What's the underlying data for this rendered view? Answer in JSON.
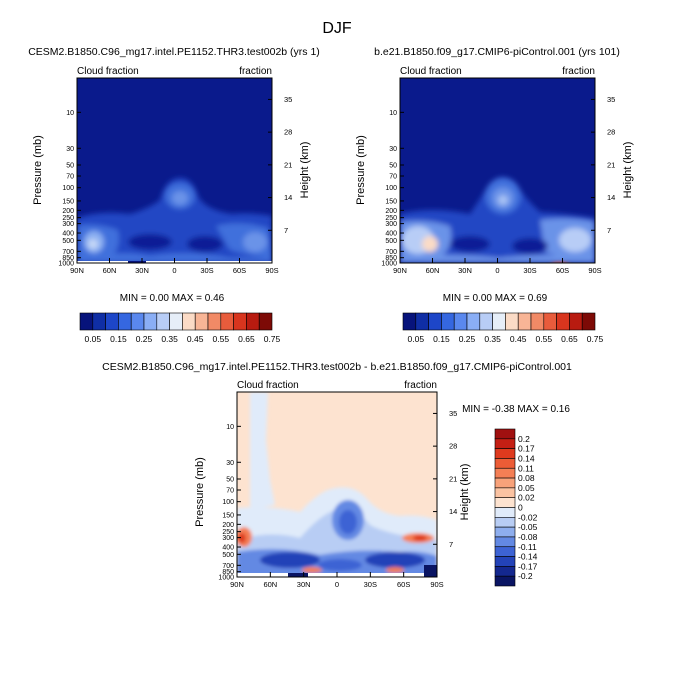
{
  "figure": {
    "title": "DJF"
  },
  "panels": {
    "left": {
      "title": "CESM2.B1850.C96_mg17.intel.PE1152.THR3.test002b (yrs 1)",
      "label_left": "Cloud fraction",
      "label_right": "fraction",
      "ylabel": "Pressure (mb)",
      "ylabel_right": "Height (km)",
      "stats": "MIN =  0.00  MAX =  0.46"
    },
    "right": {
      "title": "b.e21.B1850.f09_g17.CMIP6-piControl.001 (yrs 101)",
      "label_left": "Cloud fraction",
      "label_right": "fraction",
      "ylabel": "Pressure (mb)",
      "ylabel_right": "Height (km)",
      "stats": "MIN =  0.00  MAX =  0.69"
    },
    "diff": {
      "title": "CESM2.B1850.C96_mg17.intel.PE1152.THR3.test002b - b.e21.B1850.f09_g17.CMIP6-piControl.001",
      "label_left": "Cloud fraction",
      "label_right": "fraction",
      "ylabel": "Pressure (mb)",
      "ylabel_right": "Height (km)",
      "stats": "MIN = -0.38  MAX =  0.16"
    }
  },
  "chart_data": [
    {
      "type": "heatmap",
      "panel": "left",
      "title": "CESM2.B1850.C96_mg17.intel.PE1152.THR3.test002b (yrs 1)",
      "ylabel": "Pressure (mb)",
      "ylabel_right": "Height (km)",
      "x_ticks": [
        "90N",
        "60N",
        "30N",
        "0",
        "30S",
        "60S",
        "90S"
      ],
      "x_tick_values": [
        90,
        60,
        30,
        0,
        -30,
        -60,
        -90
      ],
      "y_ticks": [
        "10",
        "30",
        "50",
        "70",
        "100",
        "150",
        "200",
        "250",
        "300",
        "400",
        "500",
        "700",
        "850",
        "1000"
      ],
      "y_tick_values": [
        10,
        30,
        50,
        70,
        100,
        150,
        200,
        250,
        300,
        400,
        500,
        700,
        850,
        1000
      ],
      "y_log": true,
      "y_right_ticks": [
        "35",
        "28",
        "21",
        "14",
        "7"
      ],
      "y_right_tick_values": [
        35,
        28,
        21,
        14,
        7
      ],
      "min": 0.0,
      "max": 0.46,
      "colorbar_labels": [
        "0.05",
        "0.15",
        "0.25",
        "0.35",
        "0.45",
        "0.55",
        "0.65",
        "0.75"
      ],
      "colorbar_colors": [
        "#07137b",
        "#0f2ea5",
        "#1d46c8",
        "#3567e0",
        "#5a88ee",
        "#8aaef5",
        "#b8cdf6",
        "#e6eef8",
        "#fbdbc6",
        "#f8b596",
        "#f18a66",
        "#e85c3c",
        "#d8351e",
        "#b81b10",
        "#7d0a06"
      ]
    },
    {
      "type": "heatmap",
      "panel": "right",
      "title": "b.e21.B1850.f09_g17.CMIP6-piControl.001 (yrs 101)",
      "ylabel": "Pressure (mb)",
      "ylabel_right": "Height (km)",
      "x_ticks": [
        "90N",
        "60N",
        "30N",
        "0",
        "30S",
        "60S",
        "90S"
      ],
      "x_tick_values": [
        90,
        60,
        30,
        0,
        -30,
        -60,
        -90
      ],
      "y_ticks": [
        "10",
        "30",
        "50",
        "70",
        "100",
        "150",
        "200",
        "250",
        "300",
        "400",
        "500",
        "700",
        "850",
        "1000"
      ],
      "y_tick_values": [
        10,
        30,
        50,
        70,
        100,
        150,
        200,
        250,
        300,
        400,
        500,
        700,
        850,
        1000
      ],
      "y_log": true,
      "y_right_ticks": [
        "35",
        "28",
        "21",
        "14",
        "7"
      ],
      "y_right_tick_values": [
        35,
        28,
        21,
        14,
        7
      ],
      "min": 0.0,
      "max": 0.69,
      "colorbar_labels": [
        "0.05",
        "0.15",
        "0.25",
        "0.35",
        "0.45",
        "0.55",
        "0.65",
        "0.75"
      ],
      "colorbar_colors": [
        "#07137b",
        "#0f2ea5",
        "#1d46c8",
        "#3567e0",
        "#5a88ee",
        "#8aaef5",
        "#b8cdf6",
        "#e6eef8",
        "#fbdbc6",
        "#f8b596",
        "#f18a66",
        "#e85c3c",
        "#d8351e",
        "#b81b10",
        "#7d0a06"
      ]
    },
    {
      "type": "heatmap",
      "panel": "diff",
      "title": "CESM2.B1850.C96_mg17.intel.PE1152.THR3.test002b - b.e21.B1850.f09_g17.CMIP6-piControl.001",
      "ylabel": "Pressure (mb)",
      "ylabel_right": "Height (km)",
      "x_ticks": [
        "90N",
        "60N",
        "30N",
        "0",
        "30S",
        "60S",
        "90S"
      ],
      "x_tick_values": [
        90,
        60,
        30,
        0,
        -30,
        -60,
        -90
      ],
      "y_ticks": [
        "10",
        "30",
        "50",
        "70",
        "100",
        "150",
        "200",
        "250",
        "300",
        "400",
        "500",
        "700",
        "850",
        "1000"
      ],
      "y_tick_values": [
        10,
        30,
        50,
        70,
        100,
        150,
        200,
        250,
        300,
        400,
        500,
        700,
        850,
        1000
      ],
      "y_log": true,
      "y_right_ticks": [
        "35",
        "28",
        "21",
        "14",
        "7"
      ],
      "y_right_tick_values": [
        35,
        28,
        21,
        14,
        7
      ],
      "min": -0.38,
      "max": 0.16,
      "colorbar_labels": [
        "0.2",
        "0.17",
        "0.14",
        "0.11",
        "0.08",
        "0.05",
        "0.02",
        "0",
        "-0.02",
        "-0.05",
        "-0.08",
        "-0.11",
        "-0.14",
        "-0.17",
        "-0.2"
      ],
      "colorbar_colors": [
        "#a01010",
        "#c41f14",
        "#de3a1e",
        "#ec5c36",
        "#f47f55",
        "#f8a27a",
        "#fbc3a2",
        "#fde3d0",
        "#e0ebfa",
        "#b8cdf4",
        "#8eaeee",
        "#6389e3",
        "#3d63d4",
        "#2343b8",
        "#14288f",
        "#0a1563"
      ]
    }
  ]
}
